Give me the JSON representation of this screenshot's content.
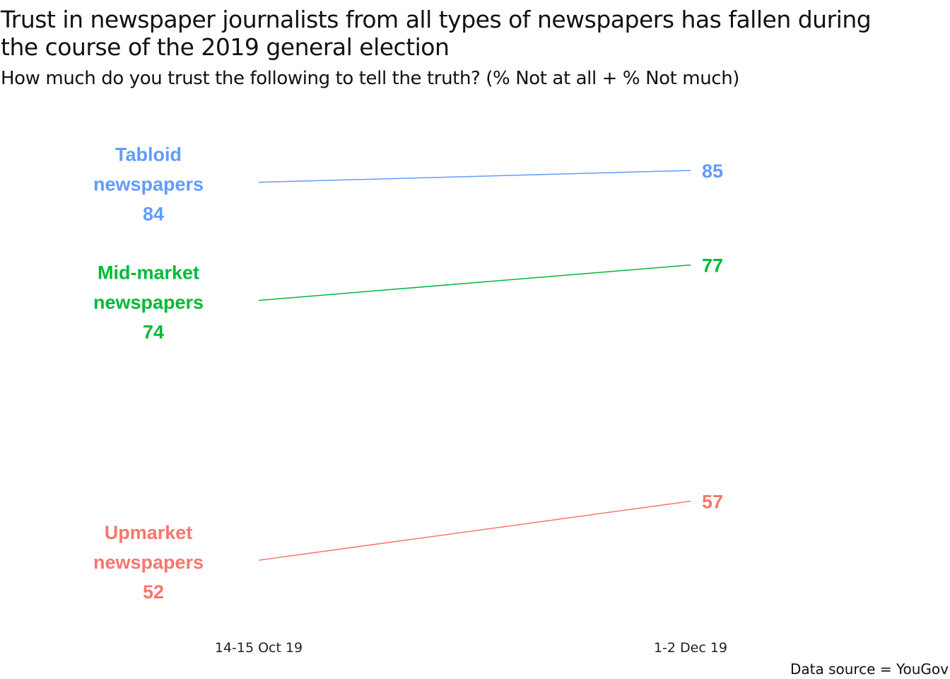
{
  "chart_data": {
    "type": "line",
    "title": "Trust in newspaper journalists from all types of newspapers has fallen during the course of the 2019 general election",
    "subtitle": "How much do you trust the following to tell the truth? (% Not at all + % Not much)",
    "caption": "Data source = YouGov",
    "x": [
      "14-15 Oct 19",
      "1-2 Dec 19"
    ],
    "xlabel": "",
    "ylabel": "",
    "grid": false,
    "series": [
      {
        "name": "Tabloid newspapers",
        "label_lines": [
          "Tabloid",
          "newspapers"
        ],
        "values": [
          84,
          85
        ],
        "color": "#619CFF"
      },
      {
        "name": "Mid-market newspapers",
        "label_lines": [
          "Mid-market",
          "newspapers"
        ],
        "values": [
          74,
          77
        ],
        "color": "#00BA38"
      },
      {
        "name": "Upmarket newspapers",
        "label_lines": [
          "Upmarket",
          "newspapers"
        ],
        "values": [
          52,
          57
        ],
        "color": "#F8766D"
      }
    ]
  }
}
